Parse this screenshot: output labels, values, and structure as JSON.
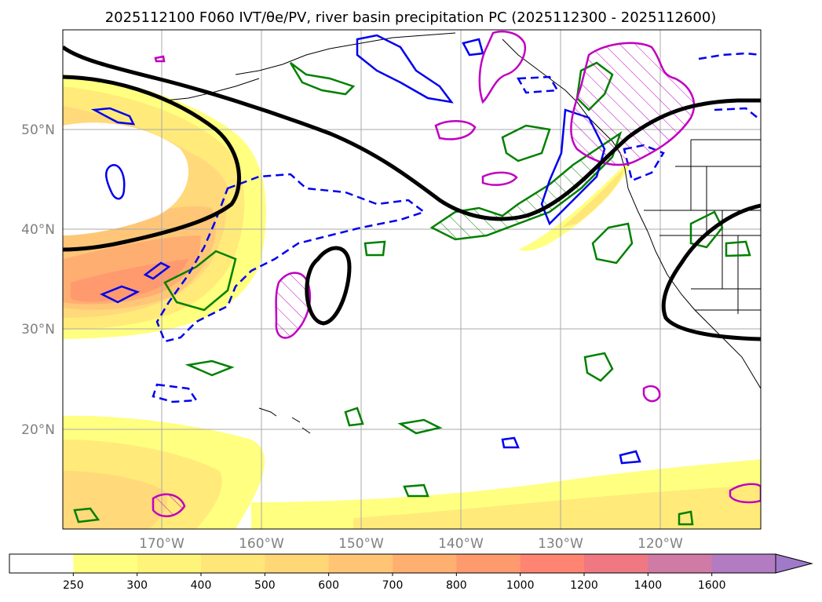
{
  "title": "2025112100 F060 IVT/θe/PV, river basin precipitation PC (2025112300 - 2025112600)",
  "map": {
    "lat_ticks": [
      "50°N",
      "40°N",
      "30°N",
      "20°N"
    ],
    "lon_ticks": [
      "170°W",
      "160°W",
      "150°W",
      "140°W",
      "130°W",
      "120°W"
    ],
    "extent": {
      "lon": [
        180,
        110
      ],
      "lat": [
        10,
        60
      ]
    }
  },
  "colorbar": {
    "levels": [
      "250",
      "300",
      "400",
      "500",
      "600",
      "700",
      "800",
      "1000",
      "1200",
      "1400",
      "1600"
    ],
    "colors": [
      "#ffff80",
      "#fff47a",
      "#ffe679",
      "#ffd777",
      "#ffc574",
      "#ffb070",
      "#ff9a6e",
      "#ff8472",
      "#f07882",
      "#d07aa6",
      "#b27bc2",
      "#a07ac8"
    ],
    "extend": "max"
  },
  "contour_colors": {
    "ivt_black": "#000000",
    "theta_green": "#008000",
    "pv_blue": "#0000ee",
    "precip_magenta": "#c000c0"
  }
}
